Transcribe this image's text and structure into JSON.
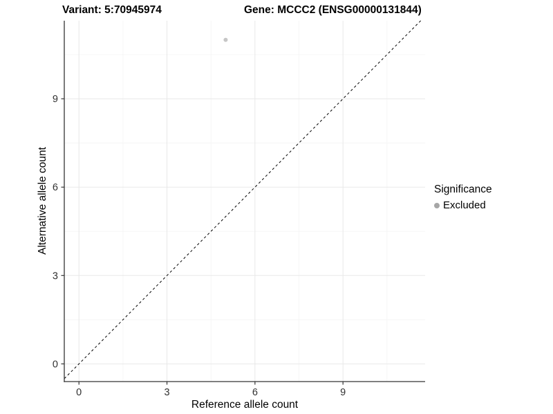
{
  "header": {
    "variant_title": "Variant: 5:70945974",
    "gene_title": "Gene: MCCC2 (ENSG00000131844)"
  },
  "legend": {
    "title": "Significance",
    "items": [
      {
        "label": "Excluded",
        "color": "#a6a6a6"
      }
    ]
  },
  "chart_data": {
    "type": "scatter",
    "title": "Variant: 5:70945974  /  Gene: MCCC2 (ENSG00000131844)",
    "xlabel": "Reference allele count",
    "ylabel": "Alternative allele count",
    "xlim": [
      -0.5,
      11.8
    ],
    "ylim": [
      -0.6,
      11.65
    ],
    "xticks": [
      0,
      3,
      6,
      9
    ],
    "yticks": [
      0,
      3,
      6,
      9
    ],
    "xticks_minor": [
      1.5,
      4.5,
      7.5,
      10.5
    ],
    "yticks_minor": [
      1.5,
      4.5,
      7.5,
      10.5
    ],
    "grid": "major+minor",
    "legend_position": "right",
    "series": [
      {
        "name": "Excluded",
        "color": "#c6c6c6",
        "marker_radius": 3,
        "points": [
          [
            5,
            11
          ]
        ]
      }
    ],
    "reference_line": {
      "slope": 1,
      "intercept": 0,
      "style": "dashed",
      "color": "#000000"
    }
  },
  "style": {
    "grid_major_color": "#e8e8e8",
    "grid_minor_color": "#f4f4f4",
    "axis_line_color": "#333333",
    "tick_label_color": "#303030",
    "background_color": "#ffffff"
  }
}
